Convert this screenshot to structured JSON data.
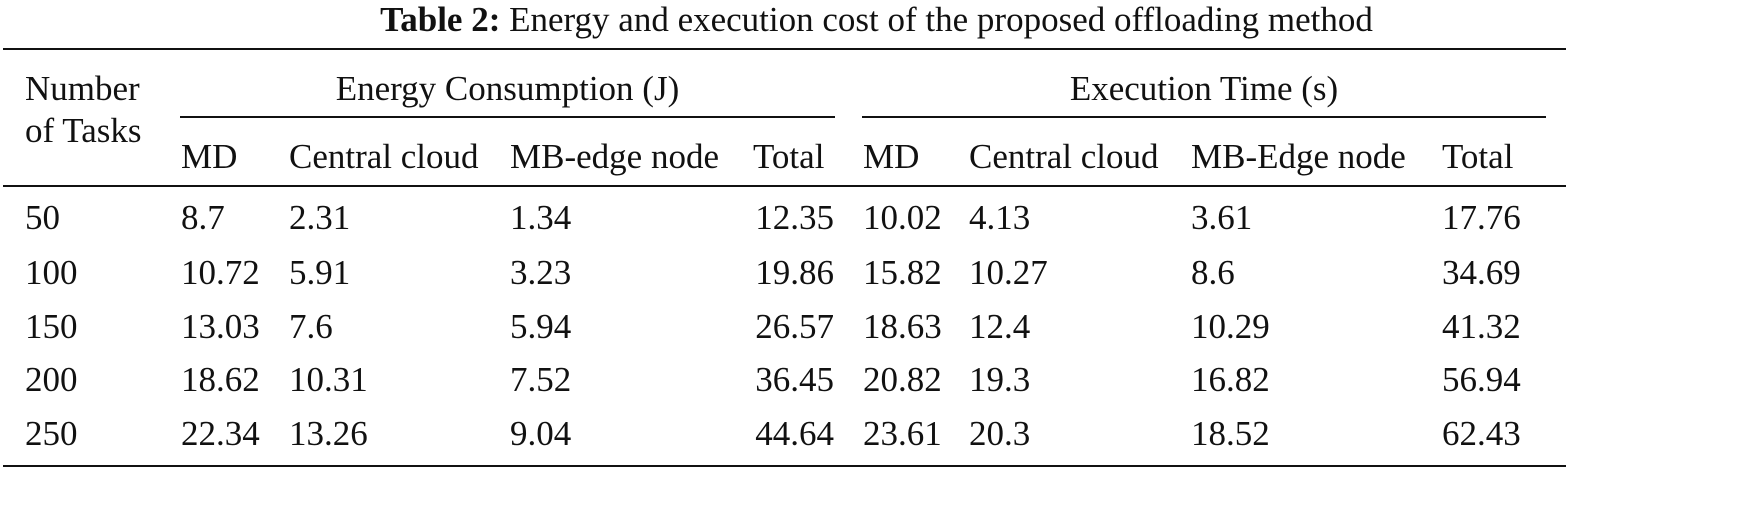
{
  "caption": {
    "label": "Table 2:",
    "text": "Energy and execution cost of the proposed offloading method"
  },
  "header": {
    "tasks_line1": "Number",
    "tasks_line2": "of Tasks",
    "group_energy": "Energy Consumption (J)",
    "group_time": "Execution Time (s)",
    "energy_cols": [
      "MD",
      "Central cloud",
      "MB-edge node",
      "Total"
    ],
    "time_cols": [
      "MD",
      "Central cloud",
      "MB-Edge node",
      "Total"
    ]
  },
  "rows": [
    {
      "tasks": "50",
      "e_md": "8.7",
      "e_cloud": "2.31",
      "e_edge": "1.34",
      "e_total": "12.35",
      "t_md": "10.02",
      "t_cloud": "4.13",
      "t_edge": "3.61",
      "t_total": "17.76"
    },
    {
      "tasks": "100",
      "e_md": "10.72",
      "e_cloud": "5.91",
      "e_edge": "3.23",
      "e_total": "19.86",
      "t_md": "15.82",
      "t_cloud": "10.27",
      "t_edge": "8.6",
      "t_total": "34.69"
    },
    {
      "tasks": "150",
      "e_md": "13.03",
      "e_cloud": "7.6",
      "e_edge": "5.94",
      "e_total": "26.57",
      "t_md": "18.63",
      "t_cloud": "12.4",
      "t_edge": "10.29",
      "t_total": "41.32"
    },
    {
      "tasks": "200",
      "e_md": "18.62",
      "e_cloud": "10.31",
      "e_edge": "7.52",
      "e_total": "36.45",
      "t_md": "20.82",
      "t_cloud": "19.3",
      "t_edge": "16.82",
      "t_total": "56.94"
    },
    {
      "tasks": "250",
      "e_md": "22.34",
      "e_cloud": "13.26",
      "e_edge": "9.04",
      "e_total": "44.64",
      "t_md": "23.61",
      "t_cloud": "20.3",
      "t_edge": "18.52",
      "t_total": "62.43"
    }
  ]
}
